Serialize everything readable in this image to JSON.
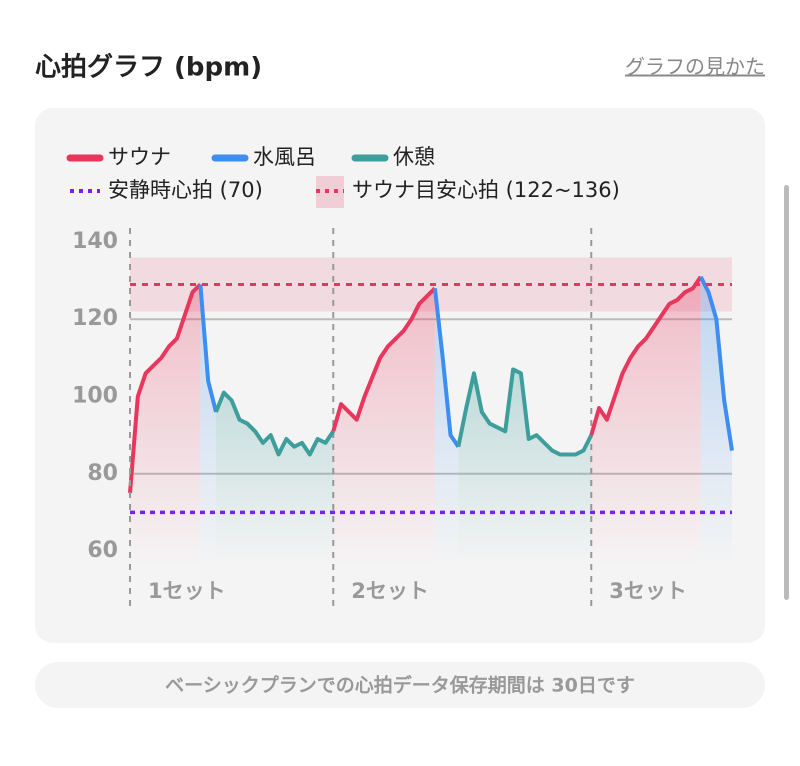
{
  "header": {
    "title": "心拍グラフ (bpm)",
    "link": "グラフの見かた"
  },
  "chart_data": {
    "type": "line",
    "x": [
      0,
      1,
      2,
      3,
      4,
      5,
      6,
      7,
      8,
      9,
      10,
      11,
      12,
      13,
      14,
      15,
      16,
      17,
      18,
      19,
      20,
      21,
      22,
      23,
      24,
      25,
      26,
      27,
      28,
      29,
      30,
      31,
      32,
      33,
      34,
      35,
      36,
      37,
      38,
      39,
      40,
      41,
      42,
      43,
      44,
      45,
      46,
      47,
      48,
      49,
      50,
      51,
      52,
      53,
      54,
      55,
      56,
      57,
      58,
      59,
      60,
      61,
      62,
      63,
      64,
      65,
      66,
      67,
      68,
      69,
      70,
      71,
      72,
      73,
      74,
      75,
      76,
      77
    ],
    "xlim": [
      0,
      77
    ],
    "ylim": [
      56,
      144
    ],
    "yticks": [
      60,
      80,
      100,
      120,
      140
    ],
    "grid_lines": [
      80,
      120
    ],
    "sets": [
      {
        "label": "1セット",
        "start": 0
      },
      {
        "label": "2セット",
        "start": 26
      },
      {
        "label": "3セット",
        "start": 59
      }
    ],
    "series": [
      {
        "name": "サウナ",
        "color": "#e8365d",
        "values": [
          75,
          100,
          106,
          108,
          110,
          113,
          115,
          121,
          127,
          129,
          null,
          null,
          null,
          null,
          null,
          null,
          null,
          null,
          null,
          null,
          null,
          null,
          null,
          null,
          null,
          null,
          91,
          98,
          96,
          94,
          100,
          105,
          110,
          113,
          115,
          117,
          120,
          124,
          126,
          128,
          null,
          null,
          null,
          null,
          null,
          null,
          null,
          null,
          null,
          null,
          null,
          null,
          null,
          null,
          null,
          null,
          null,
          null,
          null,
          90,
          97,
          94,
          100,
          106,
          110,
          113,
          115,
          118,
          121,
          124,
          125,
          127,
          128,
          131,
          null,
          null,
          null,
          null
        ]
      },
      {
        "name": "水風呂",
        "color": "#3d8ef0",
        "values": [
          null,
          null,
          null,
          null,
          null,
          null,
          null,
          null,
          null,
          129,
          104,
          96,
          null,
          null,
          null,
          null,
          null,
          null,
          null,
          null,
          null,
          null,
          null,
          null,
          null,
          null,
          null,
          null,
          null,
          null,
          null,
          null,
          null,
          null,
          null,
          null,
          null,
          null,
          null,
          128,
          110,
          90,
          87,
          null,
          null,
          null,
          null,
          null,
          null,
          null,
          null,
          null,
          null,
          null,
          null,
          null,
          null,
          null,
          null,
          null,
          null,
          null,
          null,
          null,
          null,
          null,
          null,
          null,
          null,
          null,
          null,
          null,
          null,
          131,
          127,
          120,
          99,
          86
        ]
      },
      {
        "name": "休憩",
        "color": "#3e9e9c",
        "values": [
          null,
          null,
          null,
          null,
          null,
          null,
          null,
          null,
          null,
          null,
          null,
          96,
          101,
          99,
          94,
          93,
          91,
          88,
          90,
          85,
          89,
          87,
          88,
          85,
          89,
          88,
          91,
          null,
          null,
          null,
          null,
          null,
          null,
          null,
          null,
          null,
          null,
          null,
          null,
          null,
          null,
          null,
          87,
          97,
          106,
          96,
          93,
          92,
          91,
          107,
          106,
          89,
          90,
          88,
          86,
          85,
          85,
          85,
          86,
          90,
          null,
          null,
          null,
          null,
          null,
          null,
          null,
          null,
          null,
          null,
          null,
          null,
          null,
          null,
          null,
          null,
          null,
          null
        ]
      }
    ],
    "reference_line": {
      "name": "安静時心拍 (70)",
      "value": 70,
      "color": "#7a1ff0"
    },
    "target_band": {
      "name": "サウナ目安心拍 (122~136)",
      "range": [
        122,
        136
      ],
      "color": "#e8365d"
    }
  },
  "footer": "ベーシックプランでの心拍データ保存期間は 30日です"
}
